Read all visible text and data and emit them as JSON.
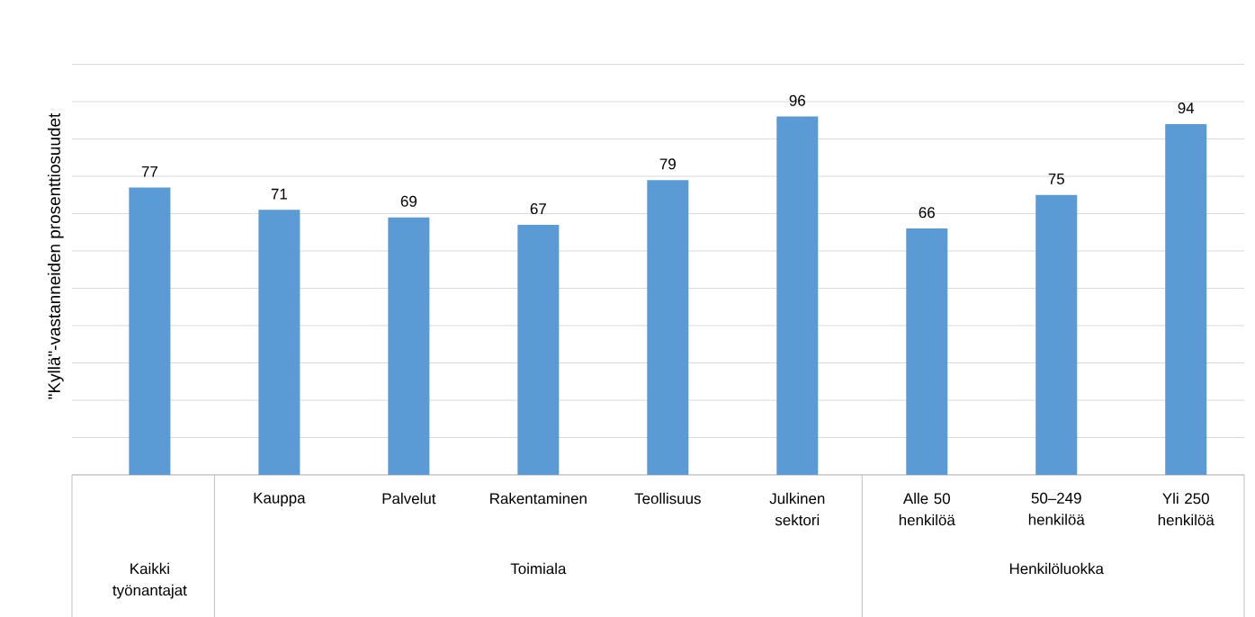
{
  "chart_data": {
    "type": "bar",
    "ylabel": "\"Kyllä\"-vastanneiden prosenttiosuudet",
    "categories": [
      null,
      "Kauppa",
      "Palvelut",
      "Rakentaminen",
      "Teollisuus",
      "Julkinen sektori",
      "Alle 50 henkilöä",
      "50–249 henkilöä",
      "Yli 250 henkilöä"
    ],
    "values": [
      77,
      71,
      69,
      67,
      79,
      96,
      66,
      75,
      94
    ],
    "color": "#5b9bd5",
    "grid": "y",
    "tick_labels": "x",
    "data_labels": true,
    "annotations": [
      "Kaikki työnantajat",
      "Toimiala",
      "Henkilöluokka"
    ]
  }
}
